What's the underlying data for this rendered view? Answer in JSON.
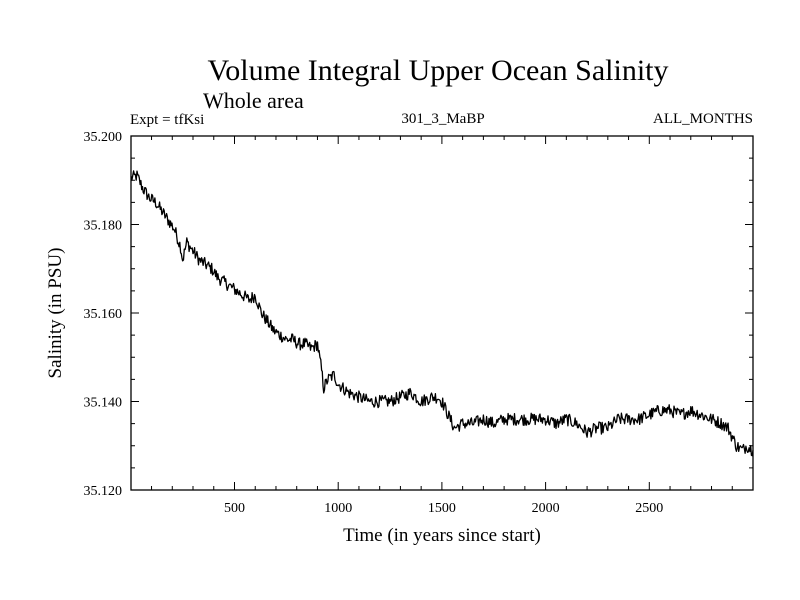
{
  "chart_data": {
    "type": "line",
    "title": "Volume Integral Upper Ocean Salinity",
    "subtitle": "Whole area",
    "expt_label": "Expt = tfKsi",
    "run_label": "301_3_MaBP",
    "months_label": "ALL_MONTHS",
    "xlabel": "Time (in years since start)",
    "ylabel": "Salinity (in PSU)",
    "xlim": [
      1,
      3000
    ],
    "ylim": [
      35.12,
      35.2
    ],
    "x_ticks": [
      500,
      1000,
      1500,
      2000,
      2500
    ],
    "x_tick_labels": [
      "500",
      "1000",
      "1500",
      "2000",
      "2500"
    ],
    "y_ticks": [
      35.12,
      35.14,
      35.16,
      35.18,
      35.2
    ],
    "y_tick_labels": [
      "35.120",
      "35.140",
      "35.160",
      "35.180",
      "35.200"
    ],
    "line_color": "#000000",
    "series": [
      {
        "name": "salinity",
        "x": [
          1,
          30,
          60,
          90,
          120,
          150,
          180,
          210,
          240,
          250,
          270,
          300,
          330,
          360,
          390,
          420,
          450,
          480,
          510,
          540,
          570,
          600,
          630,
          660,
          690,
          720,
          750,
          780,
          810,
          840,
          870,
          900,
          920,
          930,
          950,
          980,
          1000,
          1050,
          1100,
          1150,
          1200,
          1250,
          1300,
          1350,
          1400,
          1450,
          1480,
          1500,
          1530,
          1560,
          1600,
          1650,
          1700,
          1750,
          1800,
          1850,
          1900,
          1950,
          2000,
          2050,
          2100,
          2150,
          2200,
          2250,
          2300,
          2350,
          2400,
          2450,
          2500,
          2550,
          2600,
          2650,
          2700,
          2750,
          2800,
          2850,
          2880,
          2900,
          2920,
          2950,
          2970,
          3000
        ],
        "values": [
          35.1905,
          35.191,
          35.188,
          35.186,
          35.185,
          35.183,
          35.181,
          35.179,
          35.175,
          35.172,
          35.176,
          35.174,
          35.172,
          35.171,
          35.17,
          35.168,
          35.167,
          35.166,
          35.165,
          35.164,
          35.163,
          35.164,
          35.16,
          35.158,
          35.156,
          35.155,
          35.154,
          35.154,
          35.153,
          35.153,
          35.152,
          35.153,
          35.147,
          35.143,
          35.145,
          35.146,
          35.144,
          35.142,
          35.141,
          35.14,
          35.14,
          35.14,
          35.141,
          35.142,
          35.14,
          35.141,
          35.141,
          35.14,
          35.137,
          35.134,
          35.135,
          35.135,
          35.136,
          35.135,
          35.136,
          35.136,
          35.136,
          35.136,
          35.136,
          35.135,
          35.136,
          35.135,
          35.133,
          35.134,
          35.134,
          35.136,
          35.136,
          35.136,
          35.137,
          35.138,
          35.138,
          35.137,
          35.138,
          35.137,
          35.136,
          35.135,
          35.134,
          35.132,
          35.13,
          35.129,
          35.13,
          35.129
        ]
      }
    ]
  }
}
